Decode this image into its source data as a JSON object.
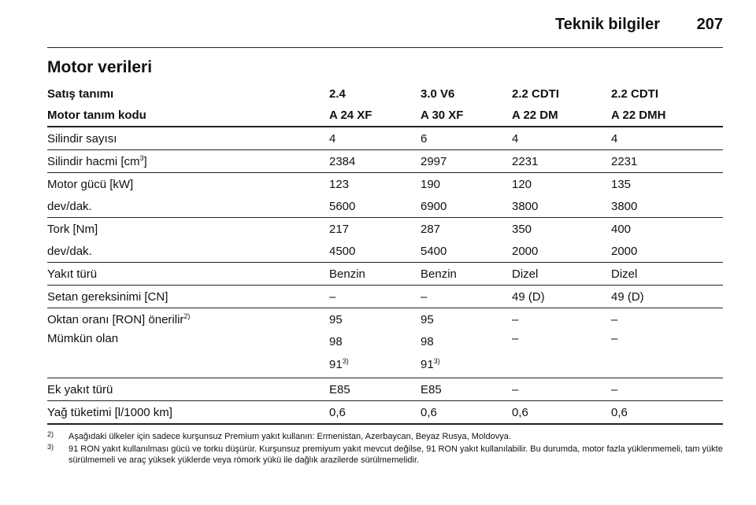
{
  "header": {
    "title": "Teknik bilgiler",
    "page": "207"
  },
  "section_title": "Motor verileri",
  "table": {
    "head": [
      [
        "Satış tanımı",
        "2.4",
        "3.0 V6",
        "2.2 CDTI",
        "2.2 CDTI"
      ],
      [
        "Motor tanım kodu",
        "A 24 XF",
        "A 30 XF",
        "A 22 DM",
        "A 22 DMH"
      ]
    ],
    "groups": [
      [
        {
          "label": {
            "text": "Silindir sayısı"
          },
          "cells": [
            "4",
            "6",
            "4",
            "4"
          ]
        }
      ],
      [
        {
          "label": {
            "text": "Silindir hacmi [cm",
            "sup": "3",
            "after": "]"
          },
          "cells": [
            "2384",
            "2997",
            "2231",
            "2231"
          ]
        }
      ],
      [
        {
          "label": {
            "text": "Motor gücü [kW]"
          },
          "cells": [
            "123",
            "190",
            "120",
            "135"
          ]
        },
        {
          "label": {
            "text": "dev/dak."
          },
          "cells": [
            "5600",
            "6900",
            "3800",
            "3800"
          ]
        }
      ],
      [
        {
          "label": {
            "text": "Tork [Nm]"
          },
          "cells": [
            "217",
            "287",
            "350",
            "400"
          ]
        },
        {
          "label": {
            "text": "dev/dak."
          },
          "cells": [
            "4500",
            "5400",
            "2000",
            "2000"
          ]
        }
      ],
      [
        {
          "label": {
            "text": "Yakıt türü"
          },
          "cells": [
            "Benzin",
            "Benzin",
            "Dizel",
            "Dizel"
          ]
        }
      ],
      [
        {
          "label": {
            "text": "Setan gereksinimi [CN]"
          },
          "cells": [
            "–",
            "–",
            "49 (D)",
            "49 (D)"
          ]
        }
      ],
      [
        {
          "label": {
            "text": "Oktan oranı [RON] önerilir",
            "sup": "2)"
          },
          "cells": [
            "95",
            "95",
            "–",
            "–"
          ]
        },
        {
          "label": {
            "text": "Mümkün olan"
          },
          "cells": [
            [
              {
                "text": "98"
              },
              {
                "text": "91",
                "sup": "3)"
              }
            ],
            [
              {
                "text": "98"
              },
              {
                "text": "91",
                "sup": "3)"
              }
            ],
            "–",
            "–"
          ]
        }
      ],
      [
        {
          "label": {
            "text": "Ek yakıt türü"
          },
          "cells": [
            "E85",
            "E85",
            "–",
            "–"
          ]
        }
      ],
      [
        {
          "label": {
            "text": "Yağ tüketimi [l/1000 km]"
          },
          "cells": [
            "0,6",
            "0,6",
            "0,6",
            "0,6"
          ]
        }
      ]
    ]
  },
  "footnotes": [
    {
      "mark": "2)",
      "text": "Aşağıdaki ülkeler için sadece kurşunsuz Premium yakıt kullanın: Ermenistan, Azerbaycan, Beyaz Rusya, Moldovya."
    },
    {
      "mark": "3)",
      "text": "91 RON yakıt kullanılması gücü ve torku düşürür. Kurşunsuz premiyum yakıt mevcut değilse, 91 RON yakıt kullanılabilir. Bu durumda, motor fazla yüklenmemeli, tam yükte sürülmemeli ve araç yüksek yüklerde veya römork yükü ile dağlık arazilerde sürülmemelidir."
    }
  ]
}
